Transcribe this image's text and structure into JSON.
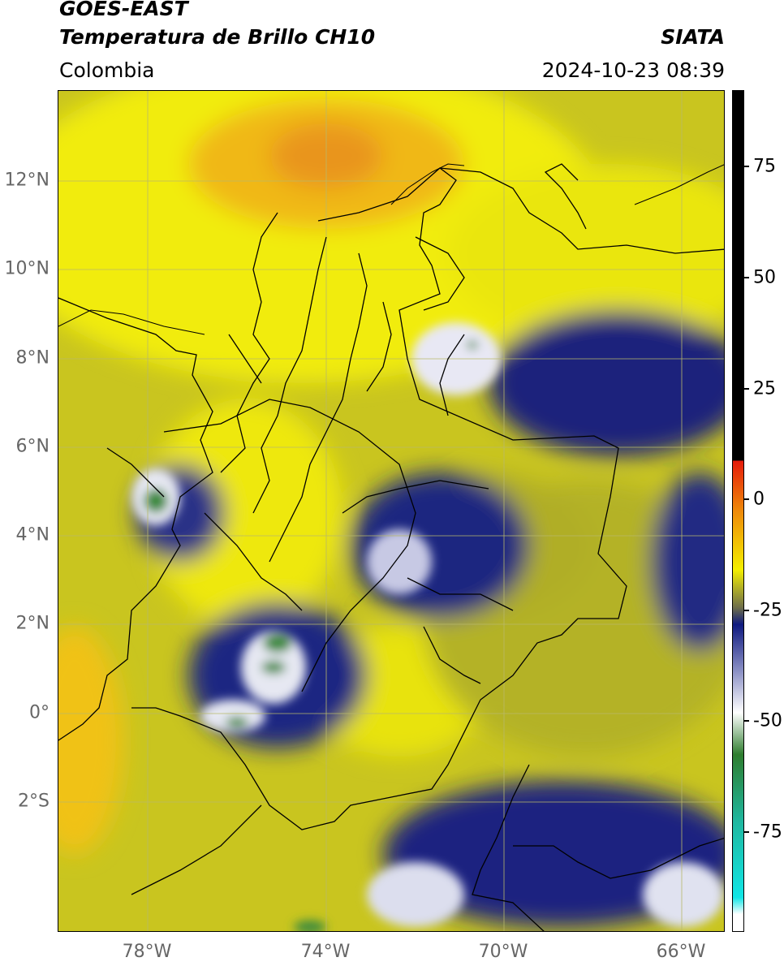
{
  "header": {
    "satellite": "GOES-EAST",
    "product": "Temperatura de Brillo CH10",
    "brand": "SIATA",
    "region": "Colombia",
    "datetime": "2024-10-23 08:39"
  },
  "map": {
    "lat_labels": [
      "12°N",
      "10°N",
      "8°N",
      "6°N",
      "4°N",
      "2°N",
      "0°",
      "2°S"
    ],
    "lon_labels": [
      "78°W",
      "74°W",
      "70°W",
      "66°W"
    ],
    "gridlines": true
  },
  "colorbar": {
    "tick_labels": [
      "75",
      "50",
      "25",
      "0",
      "-25",
      "-50",
      "-75"
    ],
    "colors": {
      "black": "#000000",
      "red": "#e51a0a",
      "orange": "#ef8a0a",
      "yellow": "#f4ef00",
      "olive": "#b6b424",
      "navy": "#0f1a80",
      "white": "#ffffff",
      "green": "#2e7d2e",
      "teal": "#1fb8a0",
      "cyan": "#11e6e6"
    }
  }
}
